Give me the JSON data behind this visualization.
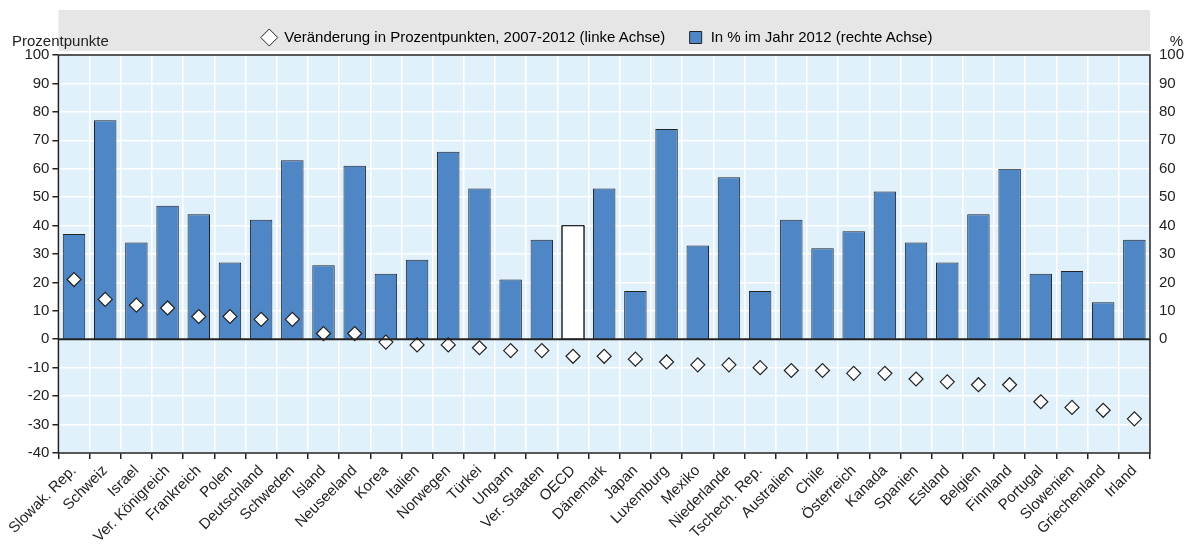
{
  "chart_data": {
    "type": "bar",
    "ylabel": "Prozentpunkte",
    "y2label": "%",
    "categories": [
      "Slowak. Rep.",
      "Schweiz",
      "Israel",
      "Ver. Königreich",
      "Frankreich",
      "Polen",
      "Deutschland",
      "Schweden",
      "Island",
      "Neuseeland",
      "Korea",
      "Italien",
      "Norwegen",
      "Türkei",
      "Ungarn",
      "Ver. Staaten",
      "OECD",
      "Dänemark",
      "Japan",
      "Luxemburg",
      "Mexiko",
      "Niederlande",
      "Tschech. Rep.",
      "Australien",
      "Chile",
      "Österreich",
      "Kanada",
      "Spanien",
      "Estland",
      "Belgien",
      "Finnland",
      "Portugal",
      "Slowenien",
      "Griechenland",
      "Irland"
    ],
    "series": [
      {
        "type": "scatter",
        "name": "Veränderung in Prozentpunkten, 2007-2012 (linke Achse)",
        "color": "#ffffff",
        "marker": "diamond",
        "x": [
          "Slowak. Rep.",
          "Schweiz",
          "Israel",
          "Ver. Königreich",
          "Frankreich",
          "Polen",
          "Deutschland",
          "Schweden",
          "Island",
          "Neuseeland",
          "Korea",
          "Italien",
          "Norwegen",
          "Türkei",
          "Ungarn",
          "Ver. Staaten",
          "OECD",
          "Dänemark",
          "Japan",
          "Luxemburg",
          "Mexiko",
          "Niederlande",
          "Tschech. Rep.",
          "Australien",
          "Chile",
          "Österreich",
          "Kanada",
          "Spanien",
          "Estland",
          "Belgien",
          "Finnland",
          "Portugal",
          "Slowenien",
          "Griechenland",
          "Irland"
        ],
        "values": [
          21,
          14,
          12,
          11,
          8,
          8,
          7,
          7,
          2,
          2,
          -1,
          -2,
          -2,
          -3,
          -4,
          -4,
          -6,
          -6,
          -7,
          -8,
          -9,
          -9,
          -10,
          -11,
          -11,
          -12,
          -12,
          -14,
          -15,
          -16,
          -16,
          -22,
          -24,
          -25,
          -28
        ]
      },
      {
        "name": "In % im Jahr 2012 (rechte Achse)",
        "axis": "y2",
        "color": "#4f86c6",
        "colors": [
          "#4f86c6",
          "#4f86c6",
          "#4f86c6",
          "#4f86c6",
          "#4f86c6",
          "#4f86c6",
          "#4f86c6",
          "#4f86c6",
          "#4f86c6",
          "#4f86c6",
          "#4f86c6",
          "#4f86c6",
          "#4f86c6",
          "#4f86c6",
          "#4f86c6",
          "#4f86c6",
          "#ffffff",
          "#4f86c6",
          "#4f86c6",
          "#4f86c6",
          "#4f86c6",
          "#4f86c6",
          "#4f86c6",
          "#4f86c6",
          "#4f86c6",
          "#4f86c6",
          "#4f86c6",
          "#4f86c6",
          "#4f86c6",
          "#4f86c6",
          "#4f86c6",
          "#4f86c6",
          "#4f86c6",
          "#4f86c6",
          "#4f86c6"
        ],
        "values": [
          37,
          77,
          34,
          47,
          44,
          27,
          42,
          63,
          26,
          61,
          23,
          28,
          66,
          53,
          21,
          35,
          40,
          53,
          17,
          74,
          33,
          57,
          17,
          42,
          32,
          38,
          52,
          34,
          27,
          44,
          60,
          23,
          24,
          13,
          35
        ]
      }
    ],
    "ylim": [
      -40,
      100
    ],
    "yticks": [
      -40,
      -30,
      -20,
      -10,
      0,
      10,
      20,
      30,
      40,
      50,
      60,
      70,
      80,
      90,
      100
    ],
    "y2lim": [
      -40,
      100
    ],
    "y2ticks": [
      0,
      10,
      20,
      30,
      40,
      50,
      60,
      70,
      80,
      90,
      100
    ],
    "grid": true,
    "legend": "top"
  }
}
